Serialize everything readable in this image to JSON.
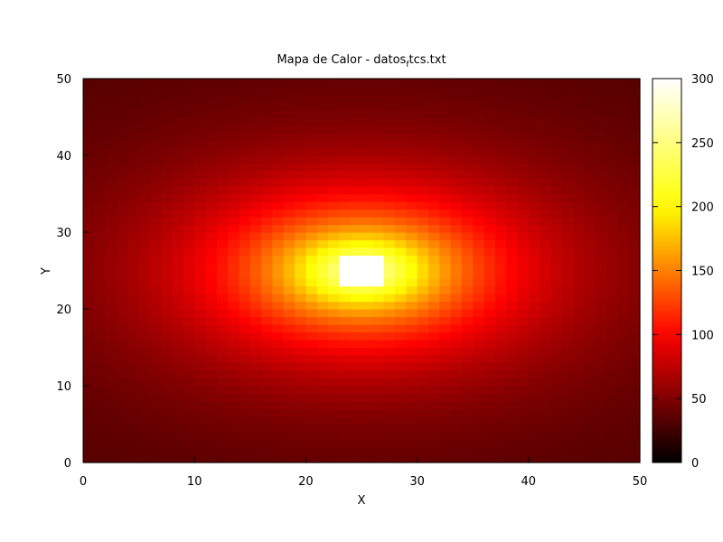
{
  "chart_data": {
    "type": "heatmap",
    "title_prefix": "Mapa de Calor - datos",
    "title_subscript": "f",
    "title_suffix": "tcs.txt",
    "xlabel": "X",
    "ylabel": "Y",
    "xlim": [
      0,
      50
    ],
    "ylim": [
      0,
      50
    ],
    "x_ticks": [
      "0",
      "10",
      "20",
      "30",
      "40",
      "50"
    ],
    "y_ticks": [
      "0",
      "10",
      "20",
      "30",
      "40",
      "50"
    ],
    "colorbar_range": [
      0,
      300
    ],
    "colorbar_ticks": [
      "0",
      "50",
      "100",
      "150",
      "200",
      "250",
      "300"
    ],
    "colormap": [
      "#000000",
      "#ff0000",
      "#ffff00",
      "#ffffff"
    ],
    "grid_size": [
      50,
      50
    ],
    "field": {
      "center": [
        25,
        25
      ],
      "peak_value": 300,
      "edge_value": 30,
      "description_note": "values estimated; hot spot centered near (25,25)"
    }
  }
}
